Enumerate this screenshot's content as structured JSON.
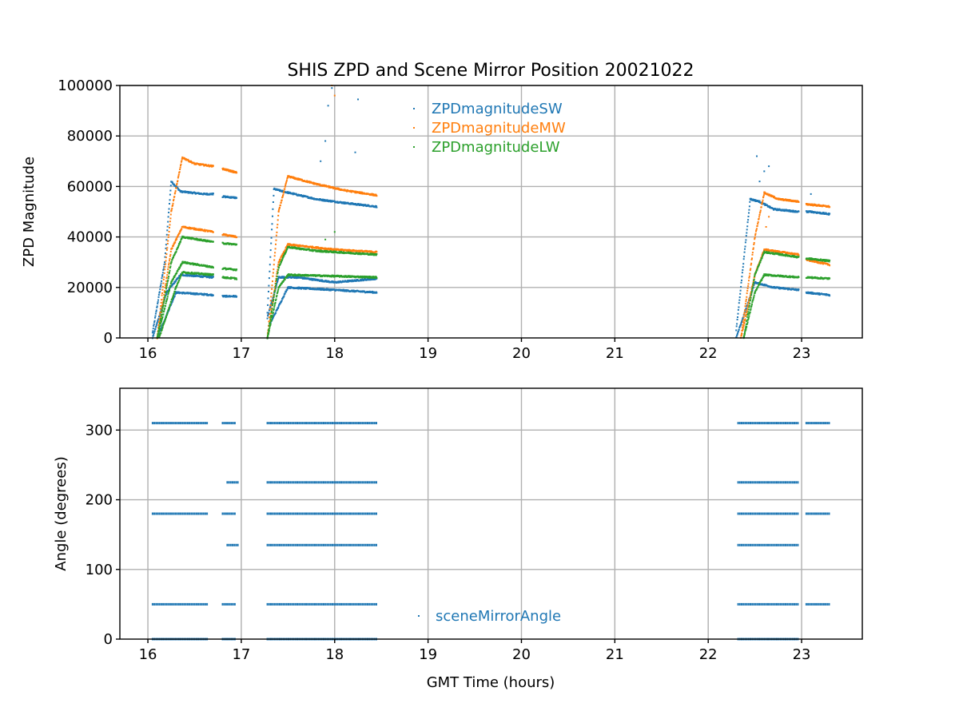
{
  "chart_data": [
    {
      "type": "scatter",
      "title": "SHIS ZPD and Scene Mirror Position 20021022",
      "xlabel": "",
      "ylabel": "ZPD Magnitude",
      "xlim": [
        15.7,
        23.65
      ],
      "ylim": [
        0,
        100000
      ],
      "grid": true,
      "legend_position": "top-center",
      "xticks": [
        16,
        17,
        18,
        19,
        20,
        21,
        22,
        23
      ],
      "xtick_labels": [
        "16",
        "17",
        "18",
        "19",
        "20",
        "21",
        "22",
        "23"
      ],
      "yticks": [
        0,
        20000,
        40000,
        60000,
        80000,
        100000
      ],
      "ytick_labels": [
        "0",
        "20000",
        "40000",
        "60000",
        "80000",
        "100000"
      ],
      "series": [
        {
          "name": "ZPDmagnitudeSW",
          "color": "#1f77b4",
          "segments": [
            {
              "x": [
                16.05,
                16.18,
                16.25,
                16.35,
                16.6,
                16.7
              ],
              "y": [
                2000,
                30000,
                62000,
                58000,
                57000,
                57000
              ]
            },
            {
              "x": [
                16.05,
                16.2,
                16.35,
                16.7
              ],
              "y": [
                0,
                18000,
                25000,
                24000
              ]
            },
            {
              "x": [
                16.1,
                16.3,
                16.7
              ],
              "y": [
                0,
                18000,
                17000
              ]
            },
            {
              "x": [
                16.8,
                16.95
              ],
              "y": [
                56000,
                55500
              ]
            },
            {
              "x": [
                16.8,
                16.95
              ],
              "y": [
                16500,
                16500
              ]
            },
            {
              "x": [
                17.28,
                17.35,
                17.45,
                17.8,
                18.1,
                18.45
              ],
              "y": [
                10000,
                59000,
                58000,
                55000,
                53500,
                52000
              ]
            },
            {
              "x": [
                17.28,
                17.4,
                17.6,
                18.0,
                18.45
              ],
              "y": [
                8000,
                24000,
                24000,
                22000,
                23500
              ]
            },
            {
              "x": [
                17.3,
                17.5,
                18.0,
                18.45
              ],
              "y": [
                5000,
                20000,
                19000,
                18000
              ]
            },
            {
              "x": [
                22.3,
                22.45,
                22.55,
                22.7,
                22.97
              ],
              "y": [
                3000,
                55000,
                54000,
                51000,
                50000
              ]
            },
            {
              "x": [
                22.3,
                22.5,
                22.7,
                22.97
              ],
              "y": [
                0,
                22000,
                20000,
                19000
              ]
            },
            {
              "x": [
                23.05,
                23.1,
                23.3
              ],
              "y": [
                50000,
                50000,
                49000
              ]
            },
            {
              "x": [
                23.05,
                23.3
              ],
              "y": [
                18000,
                17000
              ]
            }
          ],
          "spikes": [
            {
              "x": 17.9,
              "y": 78000
            },
            {
              "x": 17.93,
              "y": 92000
            },
            {
              "x": 17.97,
              "y": 99000
            },
            {
              "x": 17.85,
              "y": 70000
            },
            {
              "x": 18.25,
              "y": 94500
            },
            {
              "x": 18.22,
              "y": 73500
            },
            {
              "x": 22.52,
              "y": 72000
            },
            {
              "x": 22.6,
              "y": 66000
            },
            {
              "x": 22.65,
              "y": 68000
            },
            {
              "x": 22.55,
              "y": 62000
            },
            {
              "x": 23.1,
              "y": 57000
            }
          ]
        },
        {
          "name": "ZPDmagnitudeMW",
          "color": "#ff7f0e",
          "segments": [
            {
              "x": [
                16.1,
                16.25,
                16.37,
                16.5,
                16.7
              ],
              "y": [
                0,
                50000,
                71500,
                69000,
                68000
              ]
            },
            {
              "x": [
                16.1,
                16.25,
                16.37,
                16.7
              ],
              "y": [
                0,
                35000,
                44000,
                42000
              ]
            },
            {
              "x": [
                16.8,
                16.95
              ],
              "y": [
                67000,
                65500
              ]
            },
            {
              "x": [
                16.8,
                16.95
              ],
              "y": [
                41000,
                40000
              ]
            },
            {
              "x": [
                17.28,
                17.4,
                17.5,
                17.8,
                18.1,
                18.45
              ],
              "y": [
                0,
                50000,
                64000,
                61000,
                58500,
                56500
              ]
            },
            {
              "x": [
                17.28,
                17.4,
                17.5,
                18.0,
                18.45
              ],
              "y": [
                0,
                30000,
                37000,
                35000,
                34000
              ]
            },
            {
              "x": [
                22.35,
                22.5,
                22.6,
                22.75,
                22.97
              ],
              "y": [
                0,
                40000,
                57500,
                55000,
                54000
              ]
            },
            {
              "x": [
                22.35,
                22.5,
                22.6,
                22.97
              ],
              "y": [
                0,
                25000,
                35000,
                33000
              ]
            },
            {
              "x": [
                23.05,
                23.3
              ],
              "y": [
                53000,
                52000
              ]
            },
            {
              "x": [
                23.05,
                23.3
              ],
              "y": [
                31000,
                29000
              ]
            }
          ],
          "spikes": [
            {
              "x": 17.97,
              "y": 100000
            },
            {
              "x": 18.0,
              "y": 96000
            },
            {
              "x": 17.95,
              "y": 60000
            },
            {
              "x": 22.65,
              "y": 48000
            },
            {
              "x": 22.62,
              "y": 44000
            }
          ]
        },
        {
          "name": "ZPDmagnitudeLW",
          "color": "#2ca02c",
          "segments": [
            {
              "x": [
                16.1,
                16.25,
                16.37,
                16.7
              ],
              "y": [
                0,
                30000,
                40000,
                38000
              ]
            },
            {
              "x": [
                16.1,
                16.25,
                16.37,
                16.7
              ],
              "y": [
                0,
                22000,
                30000,
                28000
              ]
            },
            {
              "x": [
                16.12,
                16.3,
                16.37,
                16.7
              ],
              "y": [
                0,
                20000,
                26000,
                25000
              ]
            },
            {
              "x": [
                16.8,
                16.95
              ],
              "y": [
                37500,
                37000
              ]
            },
            {
              "x": [
                16.8,
                16.95
              ],
              "y": [
                27500,
                27000
              ]
            },
            {
              "x": [
                16.8,
                16.95
              ],
              "y": [
                24000,
                23500
              ]
            },
            {
              "x": [
                17.28,
                17.4,
                17.5,
                17.8,
                18.45
              ],
              "y": [
                0,
                28000,
                36000,
                34500,
                33000
              ]
            },
            {
              "x": [
                17.28,
                17.4,
                17.5,
                18.45
              ],
              "y": [
                0,
                20000,
                25000,
                24000
              ]
            },
            {
              "x": [
                22.38,
                22.5,
                22.6,
                22.97
              ],
              "y": [
                0,
                25000,
                34000,
                32000
              ]
            },
            {
              "x": [
                22.38,
                22.5,
                22.6,
                22.97
              ],
              "y": [
                0,
                18000,
                25000,
                24000
              ]
            },
            {
              "x": [
                23.05,
                23.3
              ],
              "y": [
                31500,
                30500
              ]
            },
            {
              "x": [
                23.05,
                23.3
              ],
              "y": [
                24000,
                23500
              ]
            }
          ],
          "spikes": [
            {
              "x": 17.9,
              "y": 39000
            },
            {
              "x": 18.0,
              "y": 42000
            }
          ]
        }
      ]
    },
    {
      "type": "scatter",
      "title": "",
      "xlabel": "GMT Time (hours)",
      "ylabel": "Angle (degrees)",
      "xlim": [
        15.7,
        23.65
      ],
      "ylim": [
        0,
        360
      ],
      "grid": true,
      "legend_position": "bottom-center",
      "xticks": [
        16,
        17,
        18,
        19,
        20,
        21,
        22,
        23
      ],
      "xtick_labels": [
        "16",
        "17",
        "18",
        "19",
        "20",
        "21",
        "22",
        "23"
      ],
      "yticks": [
        0,
        100,
        200,
        300
      ],
      "ytick_labels": [
        "0",
        "100",
        "200",
        "300"
      ],
      "series": [
        {
          "name": "sceneMirrorAngle",
          "color": "#1f77b4",
          "bands": [
            {
              "y": 310,
              "ranges": [
                [
                  16.05,
                  16.65
                ],
                [
                  16.8,
                  16.95
                ],
                [
                  17.28,
                  18.45
                ],
                [
                  22.32,
                  22.97
                ],
                [
                  23.05,
                  23.3
                ]
              ]
            },
            {
              "y": 225,
              "ranges": [
                [
                  16.85,
                  16.97
                ],
                [
                  17.28,
                  18.45
                ],
                [
                  22.32,
                  22.97
                ]
              ]
            },
            {
              "y": 180,
              "ranges": [
                [
                  16.05,
                  16.65
                ],
                [
                  16.8,
                  16.95
                ],
                [
                  17.28,
                  18.45
                ],
                [
                  22.32,
                  22.97
                ],
                [
                  23.05,
                  23.3
                ]
              ]
            },
            {
              "y": 135,
              "ranges": [
                [
                  16.85,
                  16.97
                ],
                [
                  17.28,
                  18.45
                ],
                [
                  22.32,
                  22.97
                ]
              ]
            },
            {
              "y": 50,
              "ranges": [
                [
                  16.05,
                  16.65
                ],
                [
                  16.8,
                  16.95
                ],
                [
                  17.28,
                  18.45
                ],
                [
                  22.32,
                  22.97
                ],
                [
                  23.05,
                  23.3
                ]
              ]
            },
            {
              "y": 0,
              "ranges": [
                [
                  16.05,
                  16.65
                ],
                [
                  16.8,
                  16.95
                ],
                [
                  17.28,
                  18.45
                ],
                [
                  22.32,
                  22.97
                ]
              ]
            }
          ]
        }
      ]
    }
  ]
}
